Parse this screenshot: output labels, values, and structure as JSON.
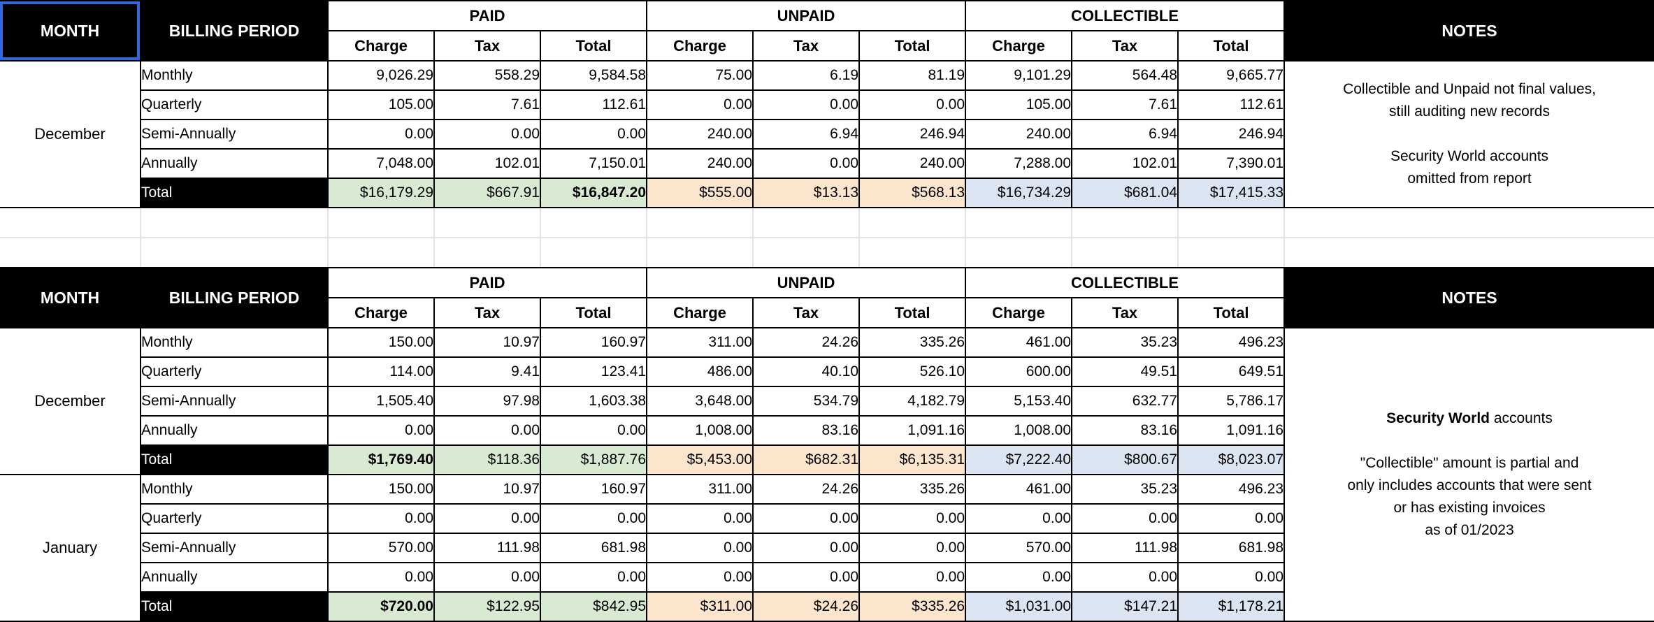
{
  "columns": {
    "month": "MONTH",
    "billing_period": "BILLING PERIOD",
    "groups": [
      {
        "label": "PAID"
      },
      {
        "label": "UNPAID"
      },
      {
        "label": "COLLECTIBLE"
      }
    ],
    "sub": [
      "Charge",
      "Tax",
      "Total"
    ],
    "notes": "NOTES"
  },
  "colors": {
    "header_bg": "#000000",
    "header_text": "#ffffff",
    "paid_total_bg": "#d9ead3",
    "unpaid_total_bg": "#fce5cd",
    "collectible_total_bg": "#dbe5f1",
    "selection_border": "#3468da"
  },
  "tables": [
    {
      "month_cell_selected": true,
      "months": [
        {
          "name": "December",
          "rows": [
            {
              "period": "Monthly",
              "values": [
                "9,026.29",
                "558.29",
                "9,584.58",
                "75.00",
                "6.19",
                "81.19",
                "9,101.29",
                "564.48",
                "9,665.77"
              ]
            },
            {
              "period": "Quarterly",
              "values": [
                "105.00",
                "7.61",
                "112.61",
                "0.00",
                "0.00",
                "0.00",
                "105.00",
                "7.61",
                "112.61"
              ]
            },
            {
              "period": "Semi-Annually",
              "values": [
                "0.00",
                "0.00",
                "0.00",
                "240.00",
                "6.94",
                "246.94",
                "240.00",
                "6.94",
                "246.94"
              ]
            },
            {
              "period": "Annually",
              "values": [
                "7,048.00",
                "102.01",
                "7,150.01",
                "240.00",
                "0.00",
                "240.00",
                "7,288.00",
                "102.01",
                "7,390.01"
              ]
            }
          ],
          "total": {
            "label": "Total",
            "values": [
              "$16,179.29",
              "$667.91",
              "$16,847.20",
              "$555.00",
              "$13.13",
              "$568.13",
              "$16,734.29",
              "$681.04",
              "$17,415.33"
            ],
            "bold_indices": [
              2
            ]
          }
        }
      ],
      "notes_lines": [
        [
          {
            "t": "Collectible and Unpaid not final values,"
          }
        ],
        [
          {
            "t": "still auditing new records"
          }
        ],
        [],
        [
          {
            "t": "Security World accounts"
          }
        ],
        [
          {
            "t": "omitted from report"
          }
        ]
      ]
    },
    {
      "month_cell_selected": false,
      "months": [
        {
          "name": "December",
          "rows": [
            {
              "period": "Monthly",
              "values": [
                "150.00",
                "10.97",
                "160.97",
                "311.00",
                "24.26",
                "335.26",
                "461.00",
                "35.23",
                "496.23"
              ]
            },
            {
              "period": "Quarterly",
              "values": [
                "114.00",
                "9.41",
                "123.41",
                "486.00",
                "40.10",
                "526.10",
                "600.00",
                "49.51",
                "649.51"
              ]
            },
            {
              "period": "Semi-Annually",
              "values": [
                "1,505.40",
                "97.98",
                "1,603.38",
                "3,648.00",
                "534.79",
                "4,182.79",
                "5,153.40",
                "632.77",
                "5,786.17"
              ]
            },
            {
              "period": "Annually",
              "values": [
                "0.00",
                "0.00",
                "0.00",
                "1,008.00",
                "83.16",
                "1,091.16",
                "1,008.00",
                "83.16",
                "1,091.16"
              ]
            }
          ],
          "total": {
            "label": "Total",
            "values": [
              "$1,769.40",
              "$118.36",
              "$1,887.76",
              "$5,453.00",
              "$682.31",
              "$6,135.31",
              "$7,222.40",
              "$800.67",
              "$8,023.07"
            ],
            "bold_indices": [
              0
            ]
          }
        },
        {
          "name": "January",
          "rows": [
            {
              "period": "Monthly",
              "values": [
                "150.00",
                "10.97",
                "160.97",
                "311.00",
                "24.26",
                "335.26",
                "461.00",
                "35.23",
                "496.23"
              ]
            },
            {
              "period": "Quarterly",
              "values": [
                "0.00",
                "0.00",
                "0.00",
                "0.00",
                "0.00",
                "0.00",
                "0.00",
                "0.00",
                "0.00"
              ]
            },
            {
              "period": "Semi-Annually",
              "values": [
                "570.00",
                "111.98",
                "681.98",
                "0.00",
                "0.00",
                "0.00",
                "570.00",
                "111.98",
                "681.98"
              ]
            },
            {
              "period": "Annually",
              "values": [
                "0.00",
                "0.00",
                "0.00",
                "0.00",
                "0.00",
                "0.00",
                "0.00",
                "0.00",
                "0.00"
              ]
            }
          ],
          "total": {
            "label": "Total",
            "values": [
              "$720.00",
              "$122.95",
              "$842.95",
              "$311.00",
              "$24.26",
              "$335.26",
              "$1,031.00",
              "$147.21",
              "$1,178.21"
            ],
            "bold_indices": [
              0
            ]
          }
        }
      ],
      "notes_lines": [
        [
          {
            "t": "Security World",
            "b": true
          },
          {
            "t": " accounts"
          }
        ],
        [],
        [
          {
            "t": "\"Collectible\" amount is partial and"
          }
        ],
        [
          {
            "t": "only includes accounts that were sent"
          }
        ],
        [
          {
            "t": "or has existing invoices"
          }
        ],
        [
          {
            "t": "as of 01/2023"
          }
        ]
      ]
    }
  ]
}
